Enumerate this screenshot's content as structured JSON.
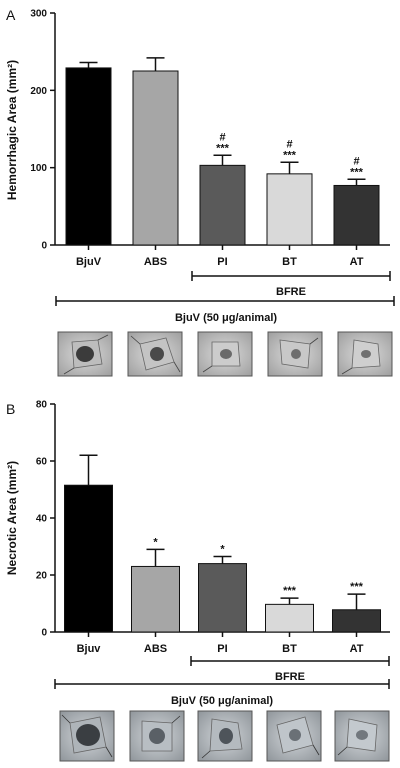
{
  "figure": {
    "panels": [
      {
        "panel_label": "A",
        "photo_colors": [
          "#d8d8d8",
          "#a9a9a9",
          "#5a5a5a",
          "#3b3b3b"
        ]
      },
      {
        "panel_label": "B",
        "photo_colors": [
          "#c9ced2",
          "#9aa0a6",
          "#4c5156",
          "#2f3336"
        ]
      }
    ]
  },
  "chart_data": [
    {
      "type": "bar",
      "panel": "A",
      "ylabel": "Hemorrhagic Area (mm²)",
      "categories": [
        "BjuV",
        "ABS",
        "PI",
        "BT",
        "AT"
      ],
      "values": [
        229,
        225,
        103,
        92,
        77
      ],
      "errors": [
        7,
        17,
        13,
        15,
        8
      ],
      "colors": [
        "#000000",
        "#a6a6a6",
        "#5a5a5a",
        "#d9d9d9",
        "#333333"
      ],
      "significance": [
        "",
        "",
        "***",
        "***",
        "***"
      ],
      "significance_hash": [
        "",
        "",
        "#",
        "#",
        "#"
      ],
      "ylim": [
        0,
        300
      ],
      "yticks": [
        0,
        100,
        200,
        300
      ],
      "bracket_categories_label": "BFRE",
      "bracket_all_label": "BjuV (50 μg/animal)"
    },
    {
      "type": "bar",
      "panel": "B",
      "ylabel": "Necrotic Area (mm²)",
      "categories": [
        "Bjuv",
        "ABS",
        "PI",
        "BT",
        "AT"
      ],
      "values": [
        51.5,
        23,
        24,
        9.7,
        7.8
      ],
      "errors": [
        10.5,
        6,
        2.5,
        2.2,
        5.5
      ],
      "colors": [
        "#000000",
        "#a6a6a6",
        "#5a5a5a",
        "#d9d9d9",
        "#333333"
      ],
      "significance": [
        "",
        "*",
        "*",
        "***",
        "***"
      ],
      "significance_hash": [
        "",
        "",
        "",
        "",
        ""
      ],
      "ylim": [
        0,
        80
      ],
      "yticks": [
        0,
        20,
        40,
        60,
        80
      ],
      "bracket_categories_label": "BFRE",
      "bracket_all_label": "BjuV (50 μg/animal)"
    }
  ]
}
